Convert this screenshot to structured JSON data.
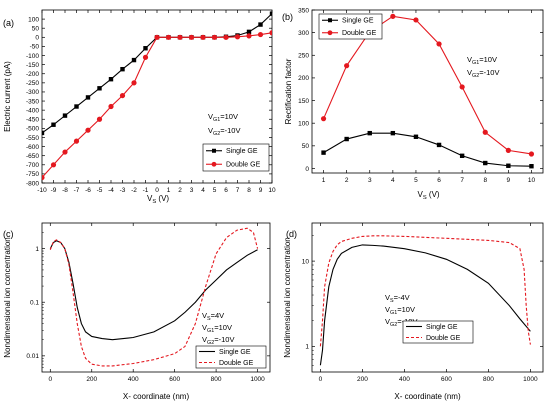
{
  "figure": {
    "panel_labels": [
      "(a)",
      "(b)",
      "(c)",
      "(d)"
    ]
  },
  "chart_data": [
    {
      "id": "a",
      "type": "line",
      "xlabel": "V",
      "xlabel_sub": "S",
      "xlabel_unit": " (V)",
      "ylabel": "Electric current (pA)",
      "xlim": [
        -10,
        10
      ],
      "ylim": [
        -800,
        150
      ],
      "xticks": [
        -10,
        -9,
        -8,
        -7,
        -6,
        -5,
        -4,
        -3,
        -2,
        -1,
        0,
        1,
        2,
        3,
        4,
        5,
        6,
        7,
        8,
        9,
        10
      ],
      "yticks": [
        -800,
        -750,
        -700,
        -650,
        -600,
        -550,
        -500,
        -450,
        -400,
        -350,
        -300,
        -250,
        -200,
        -150,
        -100,
        -50,
        0,
        50,
        100
      ],
      "annotations": [
        {
          "pre": "V",
          "sub": "G1",
          "post": "=10V"
        },
        {
          "pre": "V",
          "sub": "G2",
          "post": "=-10V"
        }
      ],
      "legend_position": "bottom-right",
      "series": [
        {
          "name": "Single GE",
          "marker": "square",
          "color": "#000000",
          "dash": "",
          "x": [
            -10,
            -9,
            -8,
            -7,
            -6,
            -5,
            -4,
            -3,
            -2,
            -1,
            0,
            1,
            2,
            3,
            4,
            5,
            6,
            7,
            8,
            9,
            10
          ],
          "y": [
            -525,
            -480,
            -430,
            -380,
            -330,
            -280,
            -230,
            -175,
            -125,
            -60,
            0,
            0,
            0,
            0,
            0,
            0,
            3,
            10,
            30,
            70,
            130
          ]
        },
        {
          "name": "Double GE",
          "marker": "circle",
          "color": "#e4181f",
          "dash": "",
          "x": [
            -10,
            -9,
            -8,
            -7,
            -6,
            -5,
            -4,
            -3,
            -2,
            -1,
            0,
            1,
            2,
            3,
            4,
            5,
            6,
            7,
            8,
            9,
            10
          ],
          "y": [
            -770,
            -700,
            -630,
            -570,
            -510,
            -450,
            -380,
            -320,
            -250,
            -110,
            0,
            0,
            0,
            0,
            0,
            0,
            0,
            3,
            8,
            15,
            25
          ]
        }
      ]
    },
    {
      "id": "b",
      "type": "line",
      "xlabel": "V",
      "xlabel_sub": "S",
      "xlabel_unit": " (V)",
      "ylabel": "Rectification factor",
      "xlim": [
        0.5,
        10.5
      ],
      "ylim": [
        -10,
        350
      ],
      "xticks": [
        1,
        2,
        3,
        4,
        5,
        6,
        7,
        8,
        9,
        10
      ],
      "yticks": [
        0,
        50,
        100,
        150,
        200,
        250,
        300,
        350
      ],
      "annotations": [
        {
          "pre": "V",
          "sub": "G1",
          "post": "=10V"
        },
        {
          "pre": "V",
          "sub": "G2",
          "post": "=-10V"
        }
      ],
      "legend_position": "top-left",
      "series": [
        {
          "name": "Single GE",
          "marker": "square",
          "color": "#000000",
          "dash": "",
          "x": [
            1,
            2,
            3,
            4,
            5,
            6,
            7,
            8,
            9,
            10
          ],
          "y": [
            35,
            65,
            78,
            78,
            70,
            52,
            28,
            12,
            6,
            5
          ]
        },
        {
          "name": "Double GE",
          "marker": "circle",
          "color": "#e4181f",
          "dash": "",
          "x": [
            1,
            2,
            3,
            4,
            5,
            6,
            7,
            8,
            9,
            10
          ],
          "y": [
            110,
            227,
            302,
            336,
            328,
            275,
            180,
            80,
            40,
            32
          ]
        }
      ]
    },
    {
      "id": "c",
      "type": "line",
      "log_y": true,
      "xlabel": "X- coordinate (nm)",
      "ylabel": "Nondimensional ion concentration",
      "xlim": [
        -40,
        1060
      ],
      "ylim": [
        0.005,
        3
      ],
      "xticks": [
        0,
        200,
        400,
        600,
        800,
        1000
      ],
      "yticks": [
        0.01,
        0.1,
        1
      ],
      "ytick_labels": [
        "0.01",
        "0.1",
        "1"
      ],
      "annotations": [
        {
          "pre": "V",
          "sub": "S",
          "post": "=4V"
        },
        {
          "pre": "V",
          "sub": "G1",
          "post": "=10V"
        },
        {
          "pre": "V",
          "sub": "G2",
          "post": "=-10V"
        }
      ],
      "legend_position": "bottom-right",
      "series": [
        {
          "name": "Single GE",
          "marker": "none",
          "color": "#000000",
          "dash": "",
          "x": [
            0,
            15,
            30,
            50,
            70,
            90,
            110,
            130,
            150,
            170,
            200,
            250,
            300,
            400,
            500,
            600,
            650,
            700,
            750,
            800,
            850,
            900,
            950,
            1000
          ],
          "y": [
            1.0,
            1.3,
            1.4,
            1.3,
            1.0,
            0.55,
            0.22,
            0.08,
            0.04,
            0.028,
            0.023,
            0.021,
            0.02,
            0.022,
            0.028,
            0.045,
            0.065,
            0.1,
            0.17,
            0.26,
            0.4,
            0.55,
            0.75,
            0.95
          ]
        },
        {
          "name": "Double GE",
          "marker": "none",
          "color": "#e4181f",
          "dash": "3,2",
          "x": [
            0,
            15,
            30,
            50,
            70,
            90,
            110,
            130,
            150,
            170,
            200,
            250,
            300,
            400,
            500,
            600,
            650,
            700,
            750,
            800,
            850,
            900,
            950,
            980,
            1000
          ],
          "y": [
            0.95,
            1.35,
            1.45,
            1.3,
            1.0,
            0.5,
            0.15,
            0.04,
            0.015,
            0.009,
            0.007,
            0.0065,
            0.0065,
            0.0072,
            0.0085,
            0.011,
            0.015,
            0.04,
            0.2,
            0.8,
            1.6,
            2.2,
            2.4,
            2.0,
            1.0
          ]
        }
      ]
    },
    {
      "id": "d",
      "type": "line",
      "log_y": true,
      "xlabel": "X- coordinate (nm)",
      "ylabel": "Nondimensional ion concentration",
      "xlim": [
        -40,
        1060
      ],
      "ylim": [
        0.5,
        28
      ],
      "xticks": [
        0,
        200,
        400,
        600,
        800,
        1000
      ],
      "yticks": [
        1,
        10
      ],
      "ytick_labels": [
        "1",
        "10"
      ],
      "annotations": [
        {
          "pre": "V",
          "sub": "S",
          "post": "=-4V"
        },
        {
          "pre": "V",
          "sub": "G1",
          "post": "=10V"
        },
        {
          "pre": "V",
          "sub": "G2",
          "post": "=-10V"
        }
      ],
      "legend_position": "bottom-right",
      "series": [
        {
          "name": "Single GE",
          "marker": "none",
          "color": "#000000",
          "dash": "",
          "x": [
            0,
            10,
            20,
            40,
            60,
            80,
            100,
            150,
            200,
            250,
            300,
            400,
            500,
            600,
            700,
            800,
            900,
            950,
            1000
          ],
          "y": [
            0.6,
            0.9,
            2.0,
            5.0,
            8.0,
            10.5,
            12.3,
            14.5,
            15.5,
            15.3,
            15.0,
            14.0,
            12.5,
            10.5,
            8.0,
            5.5,
            3.0,
            2.1,
            1.5
          ]
        },
        {
          "name": "Double GE",
          "marker": "none",
          "color": "#e4181f",
          "dash": "3,2",
          "x": [
            0,
            10,
            20,
            40,
            60,
            80,
            100,
            150,
            200,
            250,
            300,
            400,
            500,
            600,
            700,
            800,
            900,
            950,
            970,
            980,
            990,
            1000
          ],
          "y": [
            1.0,
            2.0,
            5.0,
            9.5,
            13.0,
            15.5,
            17.0,
            18.5,
            19.5,
            19.8,
            19.8,
            19.5,
            19.0,
            18.5,
            18.0,
            17.5,
            16.5,
            14.0,
            8.0,
            3.0,
            1.5,
            1.05
          ]
        }
      ]
    }
  ]
}
